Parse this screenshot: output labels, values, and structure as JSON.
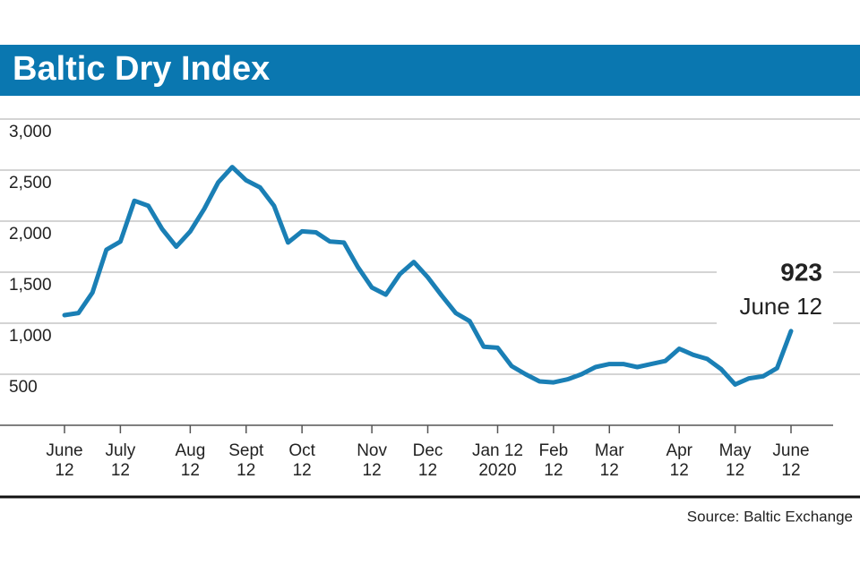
{
  "chart_data": {
    "type": "line",
    "title": "Baltic Dry Index",
    "categories": [
      "June\n12",
      null,
      null,
      null,
      "July\n12",
      null,
      null,
      null,
      null,
      "Aug\n12",
      null,
      null,
      null,
      "Sept\n12",
      null,
      null,
      null,
      "Oct\n12",
      null,
      null,
      null,
      null,
      "Nov\n12",
      null,
      null,
      null,
      "Dec\n12",
      null,
      null,
      null,
      null,
      "Jan 12\n2020",
      null,
      null,
      null,
      "Feb\n12",
      null,
      null,
      null,
      "Mar\n12",
      null,
      null,
      null,
      null,
      "Apr\n12",
      null,
      null,
      null,
      "May\n12",
      null,
      null,
      null,
      "June\n12"
    ],
    "series": [
      {
        "name": "Baltic Dry Index",
        "color": "#1a7fb5",
        "values": [
          1079,
          1100,
          1300,
          1720,
          1800,
          2200,
          2150,
          1920,
          1750,
          1900,
          2120,
          2380,
          2530,
          2400,
          2330,
          2150,
          1790,
          1900,
          1890,
          1800,
          1790,
          1550,
          1350,
          1280,
          1480,
          1600,
          1450,
          1270,
          1100,
          1020,
          770,
          760,
          580,
          500,
          430,
          420,
          450,
          500,
          570,
          600,
          600,
          570,
          600,
          630,
          750,
          690,
          650,
          550,
          400,
          460,
          480,
          560,
          923
        ]
      }
    ],
    "ylim": [
      0,
      3000
    ],
    "yticks": [
      {
        "value": 500,
        "label": "500"
      },
      {
        "value": 1000,
        "label": "1,000"
      },
      {
        "value": 1500,
        "label": "1,500"
      },
      {
        "value": 2000,
        "label": "2,000"
      },
      {
        "value": 2500,
        "label": "2,500"
      },
      {
        "value": 3000,
        "label": "3,000"
      }
    ],
    "grid": true,
    "annotation": "June 12",
    "source": "Source: Baltic Exchange"
  }
}
